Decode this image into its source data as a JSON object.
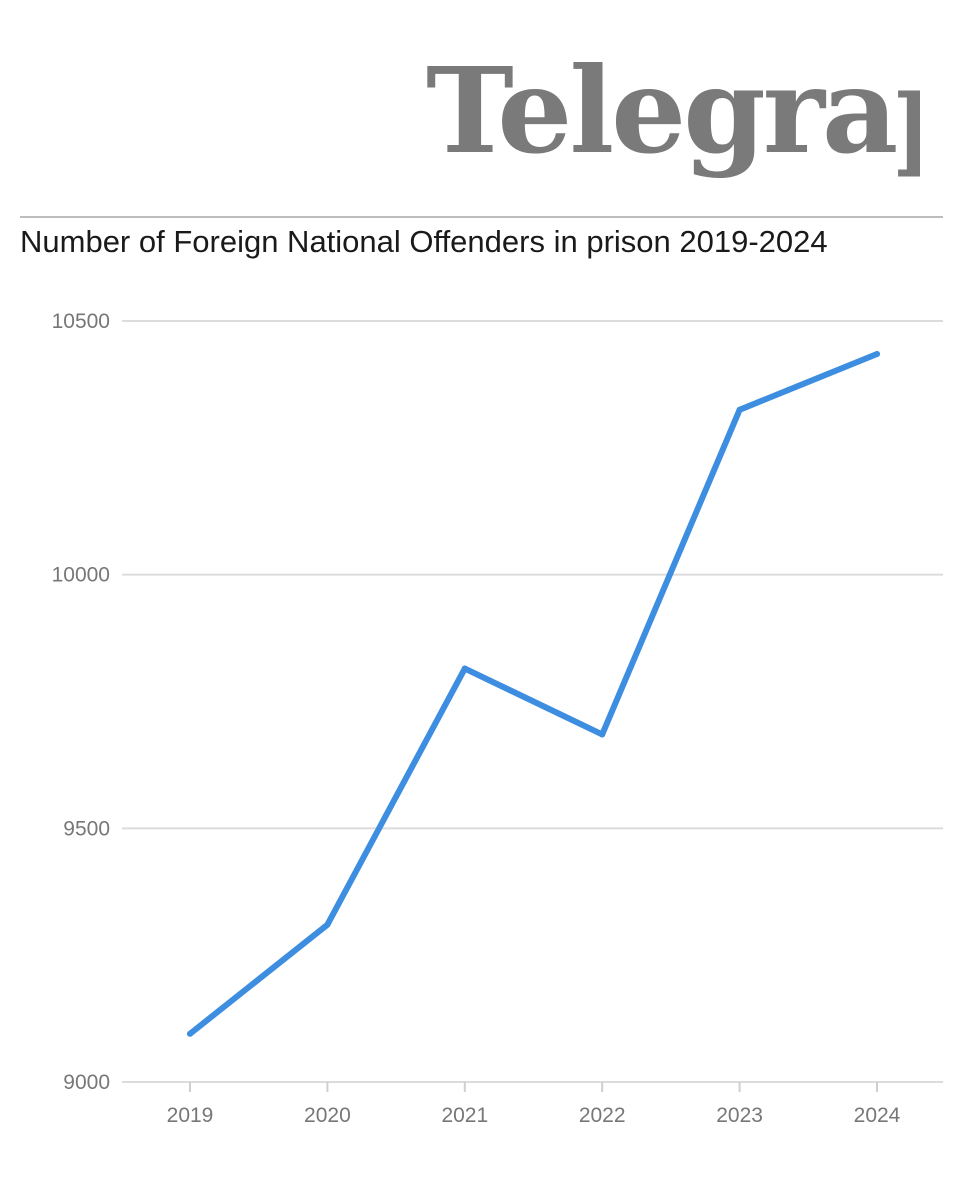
{
  "brand": {
    "logo_text": "Telegraph",
    "logo_color": "#7a7a7a"
  },
  "chart_data": {
    "type": "line",
    "title": "Number of Foreign National Offenders in prison 2019-2024",
    "xlabel": "",
    "ylabel": "",
    "categories": [
      "2019",
      "2020",
      "2021",
      "2022",
      "2023",
      "2024"
    ],
    "series": [
      {
        "values": [
          9095,
          9310,
          9815,
          9685,
          10325,
          10435
        ],
        "color": "#3d8ee0"
      }
    ],
    "ylim": [
      9000,
      10500
    ],
    "yticks": [
      9000,
      9500,
      10000,
      10500
    ],
    "grid": true,
    "legend": "none"
  }
}
